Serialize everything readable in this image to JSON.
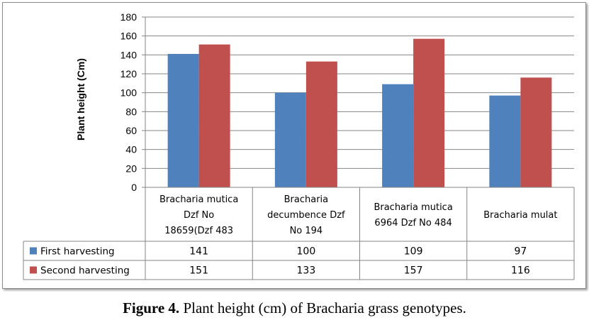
{
  "chart_data": {
    "type": "bar",
    "categories": [
      [
        "Bracharia mutica",
        "Dzf No",
        "18659(Dzf 483"
      ],
      [
        "Bracharia",
        "decumbence Dzf",
        "No 194"
      ],
      [
        "Bracharia mutica",
        "6964 Dzf No 484"
      ],
      [
        "Bracharia mulat"
      ]
    ],
    "series": [
      {
        "name": "First harvesting",
        "values": [
          141,
          100,
          109,
          97
        ],
        "color": "#4f81bd"
      },
      {
        "name": "Second harvesting",
        "values": [
          151,
          133,
          157,
          116
        ],
        "color": "#c0504d"
      }
    ],
    "ylabel": "Plant height (Cm)",
    "ylim": [
      0,
      180
    ],
    "yticks": [
      0,
      20,
      40,
      60,
      80,
      100,
      120,
      140,
      160,
      180
    ],
    "grid": true,
    "legend": "data-table"
  },
  "caption": {
    "label": "Figure 4.",
    "text": " Plant height (cm) of Bracharia grass genotypes."
  }
}
